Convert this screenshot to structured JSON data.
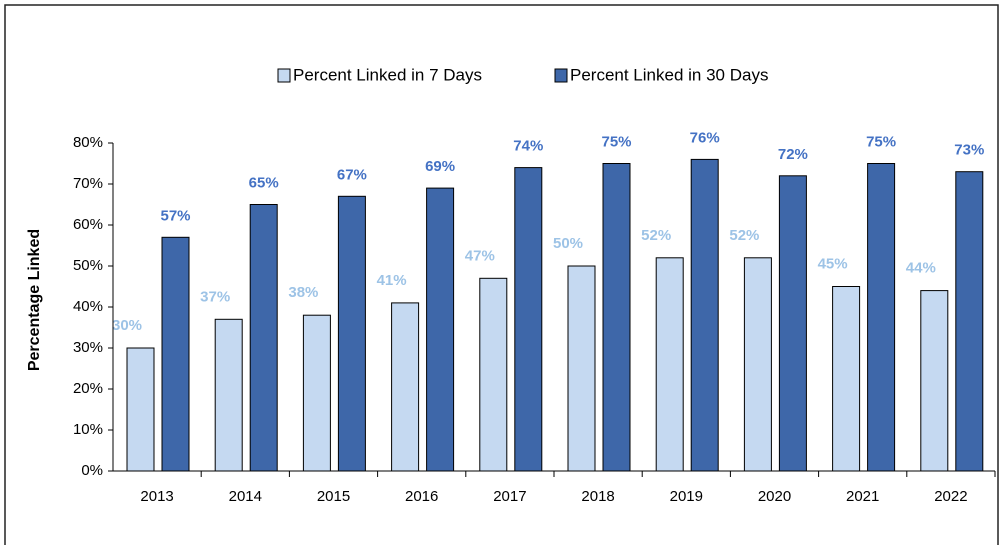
{
  "chart_data": {
    "type": "bar",
    "categories": [
      "2013",
      "2014",
      "2015",
      "2016",
      "2017",
      "2018",
      "2019",
      "2020",
      "2021",
      "2022"
    ],
    "series": [
      {
        "name": "Percent Linked in 7 Days",
        "color": "#c5d9f1",
        "label_color": "#9dc3e6",
        "values": [
          30,
          37,
          38,
          41,
          47,
          50,
          52,
          52,
          45,
          44
        ],
        "value_labels": [
          "30%",
          "37%",
          "38%",
          "41%",
          "47%",
          "50%",
          "52%",
          "52%",
          "45%",
          "44%"
        ]
      },
      {
        "name": "Percent Linked in 30 Days",
        "color": "#3e67a9",
        "label_color": "#4472c4",
        "values": [
          57,
          65,
          67,
          69,
          74,
          75,
          76,
          72,
          75,
          73
        ],
        "value_labels": [
          "57%",
          "65%",
          "67%",
          "69%",
          "74%",
          "75%",
          "76%",
          "72%",
          "75%",
          "73%"
        ]
      }
    ],
    "ylabel": "Percentage Linked",
    "ylim": [
      0,
      80
    ],
    "yticks": [
      {
        "value": 0,
        "label": "0%"
      },
      {
        "value": 10,
        "label": "10%"
      },
      {
        "value": 20,
        "label": "20%"
      },
      {
        "value": 30,
        "label": "30%"
      },
      {
        "value": 40,
        "label": "40%"
      },
      {
        "value": 50,
        "label": "50%"
      },
      {
        "value": 60,
        "label": "60%"
      },
      {
        "value": 70,
        "label": "70%"
      },
      {
        "value": 80,
        "label": "80%"
      }
    ],
    "legend": "top"
  }
}
